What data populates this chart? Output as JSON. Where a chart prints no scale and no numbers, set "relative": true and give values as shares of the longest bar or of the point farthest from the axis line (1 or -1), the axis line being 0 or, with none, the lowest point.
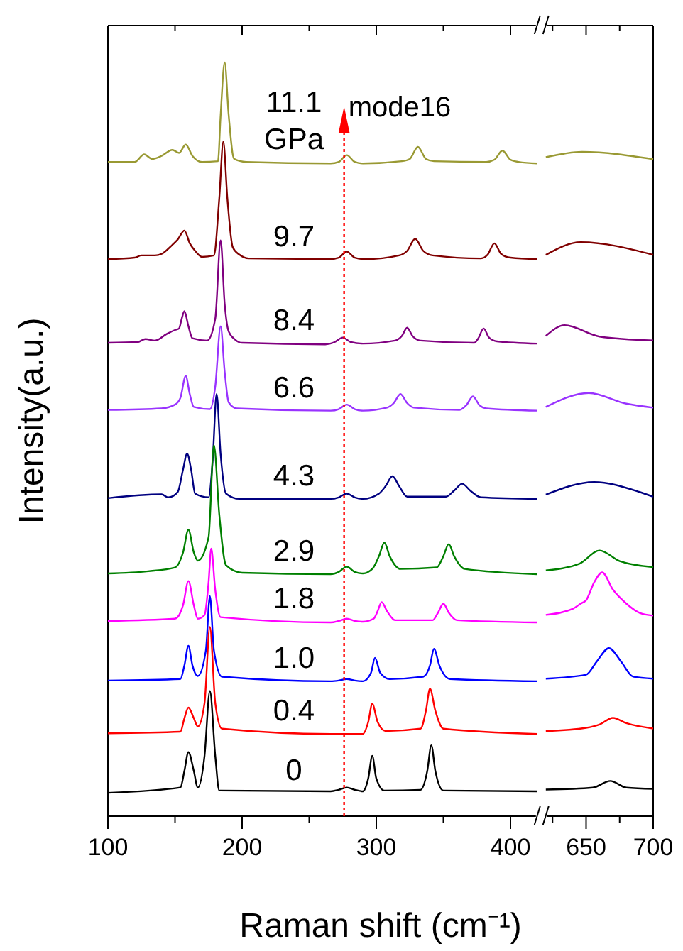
{
  "chart_data": [
    {
      "type": "line",
      "relative": true,
      "xlim": [
        100,
        420
      ],
      "xticks": [
        100,
        {
          "value": 150,
          "label": null
        },
        200,
        {
          "value": 250,
          "label": null
        },
        300,
        {
          "value": 350,
          "label": null
        },
        400
      ],
      "tick_labels": "x",
      "xlabel": "Raman shift (cm⁻¹)",
      "ylabel": "Intensity(a.u.)",
      "ref_lines": [
        {
          "axis": "x",
          "value": 276,
          "label": "mode16",
          "color": "#ff0000",
          "line_style": "dotted"
        }
      ],
      "series": [
        {
          "name": "11.1 GPa",
          "color": "#999933",
          "x": [
            100,
            120,
            127,
            133,
            140,
            148,
            153,
            158,
            163,
            170,
            182,
            184,
            187,
            190,
            194,
            203,
            266,
            272,
            278,
            284,
            290,
            319,
            325,
            331,
            337,
            343,
            382,
            388,
            394,
            400,
            406,
            420
          ],
          "values": [
            0.868,
            0.868,
            0.878,
            0.872,
            0.876,
            0.884,
            0.88,
            0.891,
            0.876,
            0.868,
            0.869,
            0.93,
            1,
            0.93,
            0.872,
            0.868,
            0.866,
            0.868,
            0.877,
            0.868,
            0.866,
            0.869,
            0.872,
            0.888,
            0.872,
            0.869,
            0.868,
            0.871,
            0.883,
            0.871,
            0.868,
            0.866
          ]
        },
        {
          "name": "9.7",
          "color": "#800000",
          "x": [
            100,
            120,
            125,
            135,
            140,
            148,
            152,
            157,
            161,
            165,
            170,
            179,
            183,
            186,
            189,
            193,
            198,
            205,
            265,
            272,
            278,
            284,
            292,
            317,
            323,
            329,
            335,
            342,
            378,
            383,
            388,
            393,
            400,
            420
          ],
          "values": [
            0.739,
            0.741,
            0.744,
            0.744,
            0.746,
            0.758,
            0.765,
            0.777,
            0.76,
            0.75,
            0.742,
            0.744,
            0.82,
            0.895,
            0.82,
            0.755,
            0.745,
            0.74,
            0.739,
            0.741,
            0.749,
            0.741,
            0.739,
            0.744,
            0.75,
            0.766,
            0.75,
            0.744,
            0.74,
            0.745,
            0.76,
            0.746,
            0.741,
            0.739
          ]
        },
        {
          "name": "8.4",
          "color": "#800080",
          "x": [
            100,
            122,
            128,
            135,
            144,
            150,
            153,
            155,
            157,
            160,
            163,
            174,
            180,
            184,
            187,
            190,
            195,
            200,
            262,
            269,
            275,
            281,
            290,
            314,
            319,
            323,
            327,
            333,
            373,
            376,
            380,
            384,
            390,
            420
          ],
          "values": [
            0.628,
            0.629,
            0.633,
            0.631,
            0.64,
            0.645,
            0.647,
            0.66,
            0.67,
            0.65,
            0.634,
            0.631,
            0.66,
            0.764,
            0.68,
            0.643,
            0.632,
            0.628,
            0.626,
            0.629,
            0.635,
            0.629,
            0.627,
            0.631,
            0.637,
            0.648,
            0.637,
            0.631,
            0.628,
            0.634,
            0.647,
            0.635,
            0.63,
            0.627
          ]
        },
        {
          "name": "6.6",
          "color": "#9933ff",
          "x": [
            100,
            140,
            150,
            154,
            158,
            161,
            164,
            176,
            180,
            184,
            187,
            190,
            196,
            266,
            272,
            278,
            284,
            290,
            308,
            313,
            318,
            323,
            328,
            362,
            367,
            372,
            377,
            382,
            420
          ],
          "values": [
            0.539,
            0.541,
            0.546,
            0.555,
            0.584,
            0.56,
            0.543,
            0.54,
            0.57,
            0.65,
            0.59,
            0.549,
            0.541,
            0.538,
            0.54,
            0.546,
            0.54,
            0.538,
            0.542,
            0.548,
            0.56,
            0.548,
            0.542,
            0.539,
            0.545,
            0.557,
            0.545,
            0.541,
            0.538
          ]
        },
        {
          "name": "4.3",
          "color": "#000080",
          "x": [
            100,
            140,
            145,
            152,
            156,
            159,
            162,
            165,
            175,
            178,
            181,
            184,
            188,
            198,
            266,
            272,
            278,
            284,
            290,
            302,
            307,
            312,
            317,
            323,
            352,
            358,
            364,
            370,
            378,
            420
          ],
          "values": [
            0.422,
            0.427,
            0.423,
            0.43,
            0.46,
            0.481,
            0.46,
            0.428,
            0.423,
            0.47,
            0.56,
            0.48,
            0.428,
            0.421,
            0.421,
            0.423,
            0.428,
            0.423,
            0.421,
            0.428,
            0.438,
            0.451,
            0.438,
            0.424,
            0.424,
            0.432,
            0.441,
            0.432,
            0.423,
            0.421
          ]
        },
        {
          "name": "2.9",
          "color": "#008000",
          "x": [
            100,
            130,
            150,
            156,
            160,
            164,
            167,
            175,
            179,
            183,
            188,
            200,
            266,
            272,
            278,
            284,
            290,
            297,
            302,
            306,
            310,
            318,
            345,
            350,
            354,
            358,
            366,
            420
          ],
          "values": [
            0.322,
            0.325,
            0.33,
            0.35,
            0.38,
            0.35,
            0.339,
            0.37,
            0.492,
            0.4,
            0.333,
            0.323,
            0.321,
            0.324,
            0.331,
            0.324,
            0.322,
            0.328,
            0.345,
            0.363,
            0.345,
            0.328,
            0.33,
            0.345,
            0.361,
            0.345,
            0.328,
            0.321
          ]
        },
        {
          "name": "1.8",
          "color": "#ff00ff",
          "x": [
            100,
            150,
            156,
            160,
            164,
            167,
            172,
            175,
            177,
            180,
            184,
            266,
            272,
            278,
            284,
            290,
            298,
            301,
            304,
            308,
            314,
            342,
            346,
            350,
            354,
            360,
            420
          ],
          "values": [
            0.259,
            0.262,
            0.28,
            0.312,
            0.28,
            0.262,
            0.267,
            0.31,
            0.355,
            0.3,
            0.264,
            0.257,
            0.259,
            0.262,
            0.259,
            0.258,
            0.262,
            0.272,
            0.284,
            0.272,
            0.26,
            0.26,
            0.27,
            0.282,
            0.27,
            0.26,
            0.257
          ]
        },
        {
          "name": "1.0",
          "color": "#0000ff",
          "x": [
            100,
            154,
            157,
            160,
            163,
            167,
            173,
            176,
            179,
            185,
            266,
            272,
            278,
            284,
            290,
            296,
            299,
            303,
            310,
            335,
            340,
            343,
            347,
            355,
            420
          ],
          "values": [
            0.18,
            0.182,
            0.2,
            0.226,
            0.2,
            0.186,
            0.22,
            0.292,
            0.22,
            0.185,
            0.179,
            0.18,
            0.182,
            0.18,
            0.179,
            0.19,
            0.21,
            0.19,
            0.182,
            0.185,
            0.2,
            0.222,
            0.2,
            0.182,
            0.179
          ]
        },
        {
          "name": "0.4",
          "color": "#ff0000",
          "x": [
            100,
            154,
            157,
            160,
            164,
            167,
            172,
            176,
            180,
            185,
            266,
            290,
            294,
            297,
            301,
            307,
            333,
            337,
            340,
            344,
            350,
            420
          ],
          "values": [
            0.11,
            0.112,
            0.13,
            0.144,
            0.13,
            0.119,
            0.15,
            0.251,
            0.15,
            0.116,
            0.109,
            0.109,
            0.125,
            0.149,
            0.125,
            0.113,
            0.116,
            0.14,
            0.169,
            0.14,
            0.116,
            0.109
          ]
        },
        {
          "name": "0",
          "color": "#000000",
          "x": [
            100,
            154,
            157,
            160,
            164,
            167,
            172,
            176,
            180,
            183,
            266,
            272,
            278,
            284,
            290,
            294,
            297,
            300,
            306,
            333,
            338,
            341,
            344,
            350,
            420
          ],
          "values": [
            0.031,
            0.038,
            0.06,
            0.085,
            0.06,
            0.038,
            0.08,
            0.166,
            0.08,
            0.034,
            0.033,
            0.035,
            0.038,
            0.035,
            0.033,
            0.05,
            0.08,
            0.05,
            0.034,
            0.035,
            0.06,
            0.094,
            0.06,
            0.034,
            0.033
          ]
        }
      ]
    },
    {
      "type": "line",
      "relative": true,
      "xlim": [
        620,
        700
      ],
      "xticks": [
        {
          "value": 625,
          "label": null
        },
        650,
        {
          "value": 675,
          "label": null
        },
        700
      ],
      "tick_labels": "x",
      "series": [
        {
          "color": "#999933",
          "x": [
            620,
            647,
            700
          ],
          "values": [
            0.992,
            1,
            0.989
          ]
        },
        {
          "color": "#800000",
          "x": [
            620,
            646,
            700
          ],
          "values": [
            0.845,
            0.864,
            0.845
          ]
        },
        {
          "color": "#800080",
          "x": [
            620,
            634,
            660,
            700
          ],
          "values": [
            0.723,
            0.739,
            0.722,
            0.716
          ]
        },
        {
          "color": "#9933ff",
          "x": [
            620,
            652,
            680,
            700
          ],
          "values": [
            0.616,
            0.637,
            0.621,
            0.615
          ]
        },
        {
          "color": "#000080",
          "x": [
            620,
            656,
            690,
            700
          ],
          "values": [
            0.484,
            0.503,
            0.488,
            0.481
          ]
        },
        {
          "color": "#008000",
          "x": [
            620,
            645,
            660,
            675,
            700
          ],
          "values": [
            0.37,
            0.38,
            0.4,
            0.384,
            0.375
          ]
        },
        {
          "color": "#ff00ff",
          "x": [
            620,
            640,
            646,
            650,
            656,
            662,
            670,
            680,
            690,
            700
          ],
          "values": [
            0.303,
            0.312,
            0.32,
            0.325,
            0.352,
            0.367,
            0.341,
            0.32,
            0.306,
            0.302
          ]
        },
        {
          "color": "#0000ff",
          "x": [
            620,
            650,
            658,
            667,
            676,
            685,
            700
          ],
          "values": [
            0.207,
            0.213,
            0.233,
            0.253,
            0.233,
            0.21,
            0.207
          ]
        },
        {
          "color": "#ff0000",
          "x": [
            620,
            650,
            660,
            670,
            680,
            700
          ],
          "values": [
            0.128,
            0.133,
            0.138,
            0.148,
            0.14,
            0.132
          ]
        },
        {
          "color": "#000000",
          "x": [
            620,
            655,
            668,
            680,
            700
          ],
          "values": [
            0.04,
            0.043,
            0.053,
            0.043,
            0.041
          ]
        }
      ]
    }
  ]
}
